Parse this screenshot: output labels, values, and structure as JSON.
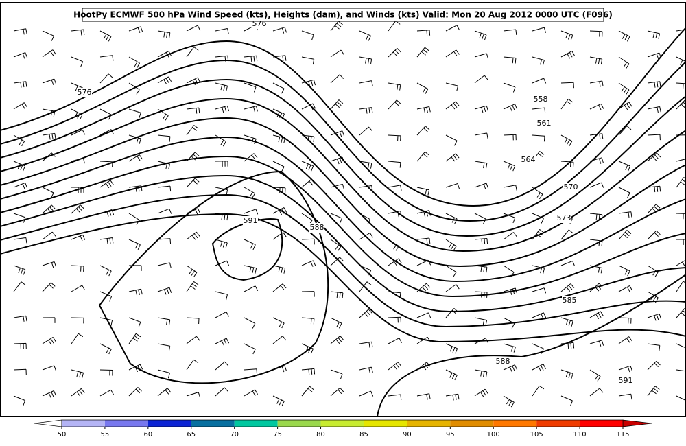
{
  "title": "HootPy ECMWF 500 hPa Wind Speed (kts), Heights (dam), and Winds (kts) Valid: Mon 20 Aug 2012 0000 UTC (F096)",
  "contour_labels": [
    "576",
    "576",
    "558",
    "561",
    "564",
    "570",
    "573",
    "585",
    "588",
    "588",
    "591",
    "591"
  ],
  "colorbar": {
    "ticks": [
      50,
      55,
      60,
      65,
      70,
      75,
      80,
      85,
      90,
      95,
      100,
      105,
      110,
      115
    ],
    "colors": [
      "#b4b4f5",
      "#7878ee",
      "#0c24d4",
      "#0870a0",
      "#00c8a0",
      "#9ad84c",
      "#c8ec30",
      "#e6e600",
      "#e6b400",
      "#e08c00",
      "#ff7800",
      "#f03c00",
      "#ff0000"
    ],
    "under_color": "#ffffff",
    "over_color": "#c80000"
  }
}
